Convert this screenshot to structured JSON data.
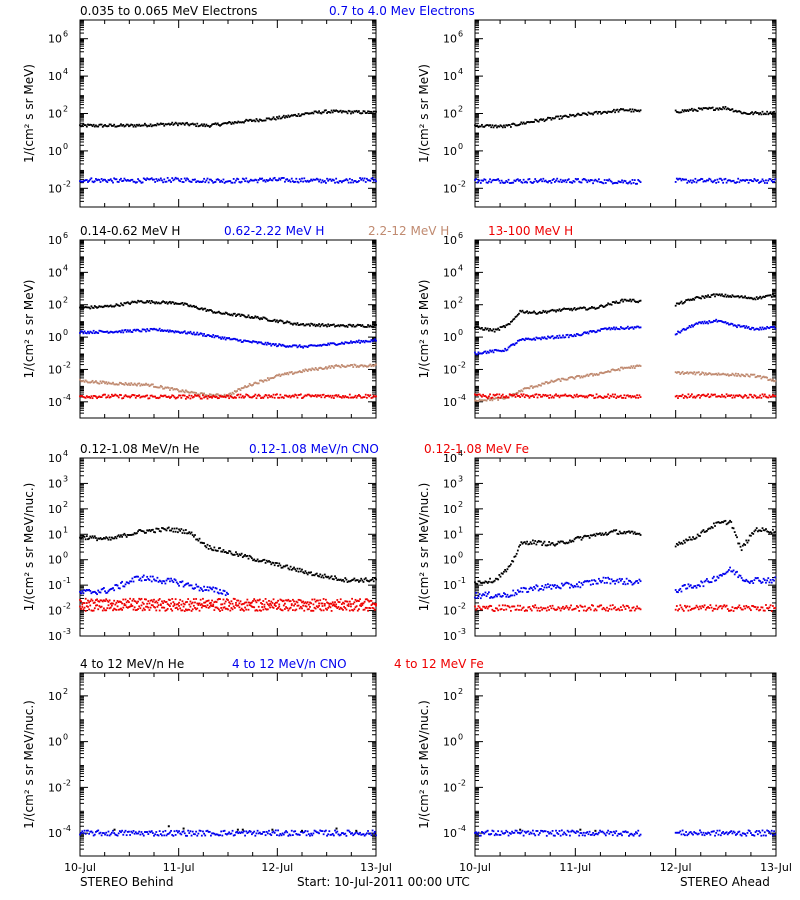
{
  "footer": {
    "left": "STEREO Behind",
    "center": "Start: 10-Jul-2011 00:00 UTC",
    "right": "STEREO Ahead"
  },
  "x_axis": {
    "range": [
      0,
      3
    ],
    "ticks": [
      0,
      1,
      2,
      3
    ],
    "tick_labels": [
      "10-Jul",
      "11-Jul",
      "12-Jul",
      "13-Jul"
    ]
  },
  "colors": {
    "black": "#000000",
    "blue": "#0000ee",
    "tan": "#c08a70",
    "red": "#ee0000"
  },
  "chart_data": [
    {
      "type": "scatter",
      "row": 0,
      "legend": [
        {
          "text": "0.035 to 0.065 MeV Electrons",
          "color": "black"
        },
        {
          "text": "0.7 to 4.0 Mev Electrons",
          "color": "blue"
        }
      ],
      "ylabel": "1/(cm² s sr MeV)",
      "yscale": "log",
      "ylim_log10": [
        -3,
        7
      ],
      "yticks_log10": [
        -2,
        0,
        2,
        4,
        6
      ],
      "ytick_labels": [
        [
          "10",
          "-2"
        ],
        [
          "10",
          "0"
        ],
        [
          "10",
          "2"
        ],
        [
          "10",
          "4"
        ],
        [
          "10",
          "6"
        ]
      ],
      "panels": [
        {
          "spacecraft": "STEREO Behind",
          "series": [
            {
              "color": "black",
              "x": [
                0,
                0.5,
                1.0,
                1.3,
                1.7,
                2.0,
                2.3,
                2.5,
                3.0
              ],
              "log10_y": [
                1.35,
                1.35,
                1.45,
                1.35,
                1.6,
                1.75,
                2.0,
                2.1,
                2.05
              ]
            },
            {
              "color": "blue",
              "x": [
                0,
                0.5,
                1.0,
                1.5,
                2.0,
                2.5,
                3.0
              ],
              "log10_y": [
                -1.55,
                -1.6,
                -1.55,
                -1.6,
                -1.55,
                -1.6,
                -1.55
              ]
            }
          ]
        },
        {
          "spacecraft": "STEREO Ahead",
          "series": [
            {
              "color": "black",
              "x": [
                0,
                0.3,
                0.6,
                1.0,
                1.5,
                1.65
              ],
              "log10_y": [
                1.35,
                1.3,
                1.6,
                1.9,
                2.2,
                2.1
              ]
            },
            {
              "color": "black",
              "x": [
                2.0,
                2.2,
                2.5,
                2.7,
                3.0
              ],
              "log10_y": [
                2.1,
                2.2,
                2.3,
                2.0,
                2.05
              ]
            },
            {
              "color": "blue",
              "x": [
                0,
                0.5,
                1.0,
                1.65
              ],
              "log10_y": [
                -1.6,
                -1.6,
                -1.6,
                -1.65
              ]
            },
            {
              "color": "blue",
              "x": [
                2.0,
                2.5,
                3.0
              ],
              "log10_y": [
                -1.6,
                -1.6,
                -1.6
              ]
            }
          ]
        }
      ]
    },
    {
      "type": "scatter",
      "row": 1,
      "legend": [
        {
          "text": "0.14-0.62 MeV H",
          "color": "black"
        },
        {
          "text": "0.62-2.22 MeV H",
          "color": "blue"
        },
        {
          "text": "2.2-12 MeV H",
          "color": "tan"
        },
        {
          "text": "13-100 MeV H",
          "color": "red"
        }
      ],
      "ylabel": "1/(cm² s sr MeV)",
      "yscale": "log",
      "ylim_log10": [
        -5,
        6
      ],
      "yticks_log10": [
        -4,
        -2,
        0,
        2,
        4,
        6
      ],
      "ytick_labels": [
        [
          "10",
          "-4"
        ],
        [
          "10",
          "-2"
        ],
        [
          "10",
          "0"
        ],
        [
          "10",
          "2"
        ],
        [
          "10",
          "4"
        ],
        [
          "10",
          "6"
        ]
      ],
      "panels": [
        {
          "spacecraft": "STEREO Behind",
          "series": [
            {
              "color": "black",
              "x": [
                0,
                0.3,
                0.6,
                1.0,
                1.4,
                1.8,
                2.2,
                2.6,
                3.0
              ],
              "log10_y": [
                1.8,
                1.9,
                2.2,
                2.1,
                1.5,
                1.2,
                0.8,
                0.7,
                0.7
              ]
            },
            {
              "color": "blue",
              "x": [
                0,
                0.4,
                0.8,
                1.2,
                1.6,
                2.0,
                2.3,
                2.6,
                3.0
              ],
              "log10_y": [
                0.3,
                0.35,
                0.45,
                0.2,
                -0.2,
                -0.5,
                -0.6,
                -0.4,
                -0.2
              ]
            },
            {
              "color": "tan",
              "x": [
                0,
                0.3,
                0.7,
                1.0,
                1.3,
                1.5,
                1.7,
                2.0,
                2.3,
                2.6,
                3.0
              ],
              "log10_y": [
                -2.7,
                -2.85,
                -2.95,
                -3.3,
                -3.6,
                -3.6,
                -3.0,
                -2.4,
                -2.05,
                -1.8,
                -1.75
              ]
            },
            {
              "color": "red",
              "x": [
                0,
                1.0,
                2.0,
                3.0
              ],
              "log10_y": [
                -3.65,
                -3.7,
                -3.65,
                -3.65
              ]
            }
          ]
        },
        {
          "spacecraft": "STEREO Ahead",
          "series": [
            {
              "color": "black",
              "x": [
                0,
                0.2,
                0.35,
                0.45,
                0.6,
                0.9,
                1.2,
                1.5,
                1.65
              ],
              "log10_y": [
                0.6,
                0.4,
                0.8,
                1.6,
                1.5,
                1.7,
                1.8,
                2.3,
                2.2
              ]
            },
            {
              "color": "black",
              "x": [
                2.0,
                2.2,
                2.4,
                2.6,
                2.8,
                3.0
              ],
              "log10_y": [
                2.0,
                2.4,
                2.6,
                2.5,
                2.4,
                2.6
              ]
            },
            {
              "color": "blue",
              "x": [
                0,
                0.3,
                0.45,
                0.6,
                1.0,
                1.3,
                1.65
              ],
              "log10_y": [
                -1.0,
                -0.8,
                -0.2,
                -0.1,
                0.1,
                0.5,
                0.6
              ]
            },
            {
              "color": "blue",
              "x": [
                2.0,
                2.2,
                2.4,
                2.6,
                2.8,
                3.0
              ],
              "log10_y": [
                0.2,
                0.8,
                1.0,
                0.7,
                0.5,
                0.6
              ]
            },
            {
              "color": "tan",
              "x": [
                0,
                0.3,
                0.5,
                0.8,
                1.2,
                1.5,
                1.65
              ],
              "log10_y": [
                -3.9,
                -3.8,
                -3.2,
                -2.7,
                -2.3,
                -1.9,
                -1.8
              ]
            },
            {
              "color": "tan",
              "x": [
                2.0,
                2.5,
                2.8,
                3.0
              ],
              "log10_y": [
                -2.2,
                -2.3,
                -2.4,
                -2.7
              ]
            },
            {
              "color": "red",
              "x": [
                0,
                0.8,
                1.65
              ],
              "log10_y": [
                -3.65,
                -3.65,
                -3.65
              ]
            },
            {
              "color": "red",
              "x": [
                2.0,
                2.5,
                3.0
              ],
              "log10_y": [
                -3.65,
                -3.65,
                -3.65
              ]
            }
          ]
        }
      ]
    },
    {
      "type": "scatter",
      "row": 2,
      "legend": [
        {
          "text": "0.12-1.08 MeV/n He",
          "color": "black"
        },
        {
          "text": "0.12-1.08 MeV/n CNO",
          "color": "blue"
        },
        {
          "text": "0.12-1.08 MeV Fe",
          "color": "red"
        }
      ],
      "ylabel": "1/(cm² s sr MeV/nuc.)",
      "yscale": "log",
      "ylim_log10": [
        -3,
        4
      ],
      "yticks_log10": [
        -3,
        -2,
        -1,
        0,
        1,
        2,
        3,
        4
      ],
      "ytick_labels": [
        [
          "10",
          "-3"
        ],
        [
          "10",
          "-2"
        ],
        [
          "10",
          "-1"
        ],
        [
          "10",
          "0"
        ],
        [
          "10",
          "1"
        ],
        [
          "10",
          "2"
        ],
        [
          "10",
          "3"
        ],
        [
          "10",
          "4"
        ]
      ],
      "panels": [
        {
          "spacecraft": "STEREO Behind",
          "series": [
            {
              "color": "black",
              "x": [
                0,
                0.3,
                0.6,
                0.9,
                1.1,
                1.3,
                1.6,
                2.0,
                2.4,
                2.7,
                3.0
              ],
              "log10_y": [
                0.9,
                0.8,
                1.1,
                1.2,
                1.1,
                0.5,
                0.2,
                -0.2,
                -0.6,
                -0.8,
                -0.8
              ]
            },
            {
              "color": "blue",
              "x": [
                0,
                0.3,
                0.6,
                0.8,
                1.0,
                1.2,
                1.5
              ],
              "log10_y": [
                -1.3,
                -1.2,
                -0.7,
                -0.8,
                -0.9,
                -1.1,
                -1.3
              ]
            },
            {
              "color": "red",
              "x": [
                0,
                1.0,
                2.0,
                3.0
              ],
              "log10_y": [
                -1.9,
                -1.9,
                -1.9,
                -1.9
              ]
            },
            {
              "color": "red",
              "x": [
                0,
                1.0,
                2.0,
                3.0
              ],
              "log10_y": [
                -1.65,
                -1.65,
                -1.65,
                -1.65
              ]
            }
          ]
        },
        {
          "spacecraft": "STEREO Ahead",
          "series": [
            {
              "color": "black",
              "x": [
                0,
                0.2,
                0.35,
                0.45,
                0.55,
                0.8,
                1.1,
                1.4,
                1.65
              ],
              "log10_y": [
                -0.9,
                -0.8,
                -0.3,
                0.6,
                0.7,
                0.6,
                0.9,
                1.1,
                1.0
              ]
            },
            {
              "color": "black",
              "x": [
                2.0,
                2.2,
                2.4,
                2.55,
                2.65,
                2.8,
                3.0
              ],
              "log10_y": [
                0.6,
                0.9,
                1.4,
                1.5,
                0.4,
                1.2,
                1.1
              ]
            },
            {
              "color": "blue",
              "x": [
                0,
                0.3,
                0.6,
                1.0,
                1.3,
                1.65
              ],
              "log10_y": [
                -1.4,
                -1.4,
                -1.1,
                -1.0,
                -0.8,
                -0.9
              ]
            },
            {
              "color": "blue",
              "x": [
                2.0,
                2.3,
                2.55,
                2.7,
                3.0
              ],
              "log10_y": [
                -1.2,
                -0.9,
                -0.4,
                -0.8,
                -0.8
              ]
            },
            {
              "color": "red",
              "x": [
                0,
                0.8,
                1.65
              ],
              "log10_y": [
                -1.9,
                -1.9,
                -1.9
              ]
            },
            {
              "color": "red",
              "x": [
                2.0,
                2.5,
                3.0
              ],
              "log10_y": [
                -1.9,
                -1.9,
                -1.9
              ]
            }
          ]
        }
      ]
    },
    {
      "type": "scatter",
      "row": 3,
      "legend": [
        {
          "text": "4 to 12 MeV/n He",
          "color": "black"
        },
        {
          "text": "4 to 12 MeV/n CNO",
          "color": "blue"
        },
        {
          "text": "4 to 12 MeV Fe",
          "color": "red"
        }
      ],
      "ylabel": "1/(cm² s sr MeV/nuc.)",
      "yscale": "log",
      "ylim_log10": [
        -5,
        3
      ],
      "yticks_log10": [
        -4,
        -2,
        0,
        2
      ],
      "ytick_labels": [
        [
          "10",
          "-4"
        ],
        [
          "10",
          "-2"
        ],
        [
          "10",
          "0"
        ],
        [
          "10",
          "2"
        ]
      ],
      "panels": [
        {
          "spacecraft": "STEREO Behind",
          "series": [
            {
              "color": "blue",
              "x": [
                0,
                1.0,
                2.0,
                3.0
              ],
              "log10_y": [
                -4,
                -4,
                -4,
                -4
              ]
            },
            {
              "color": "black",
              "x": [
                0.35,
                0.9,
                1.05,
                1.6,
                1.65,
                1.95,
                2.25,
                2.6,
                2.8
              ],
              "log10_y": [
                -3.85,
                -3.7,
                -3.8,
                -3.85,
                -3.85,
                -3.85,
                -3.9,
                -3.8,
                -3.9
              ]
            }
          ]
        },
        {
          "spacecraft": "STEREO Ahead",
          "series": [
            {
              "color": "blue",
              "x": [
                0,
                0.8,
                1.65
              ],
              "log10_y": [
                -4,
                -4,
                -4
              ]
            },
            {
              "color": "blue",
              "x": [
                2.0,
                2.5,
                3.0
              ],
              "log10_y": [
                -4,
                -4,
                -4
              ]
            },
            {
              "color": "black",
              "x": [
                0.45,
                1.05,
                1.2
              ],
              "log10_y": [
                -3.85,
                -3.85,
                -3.9
              ]
            }
          ]
        }
      ]
    }
  ]
}
